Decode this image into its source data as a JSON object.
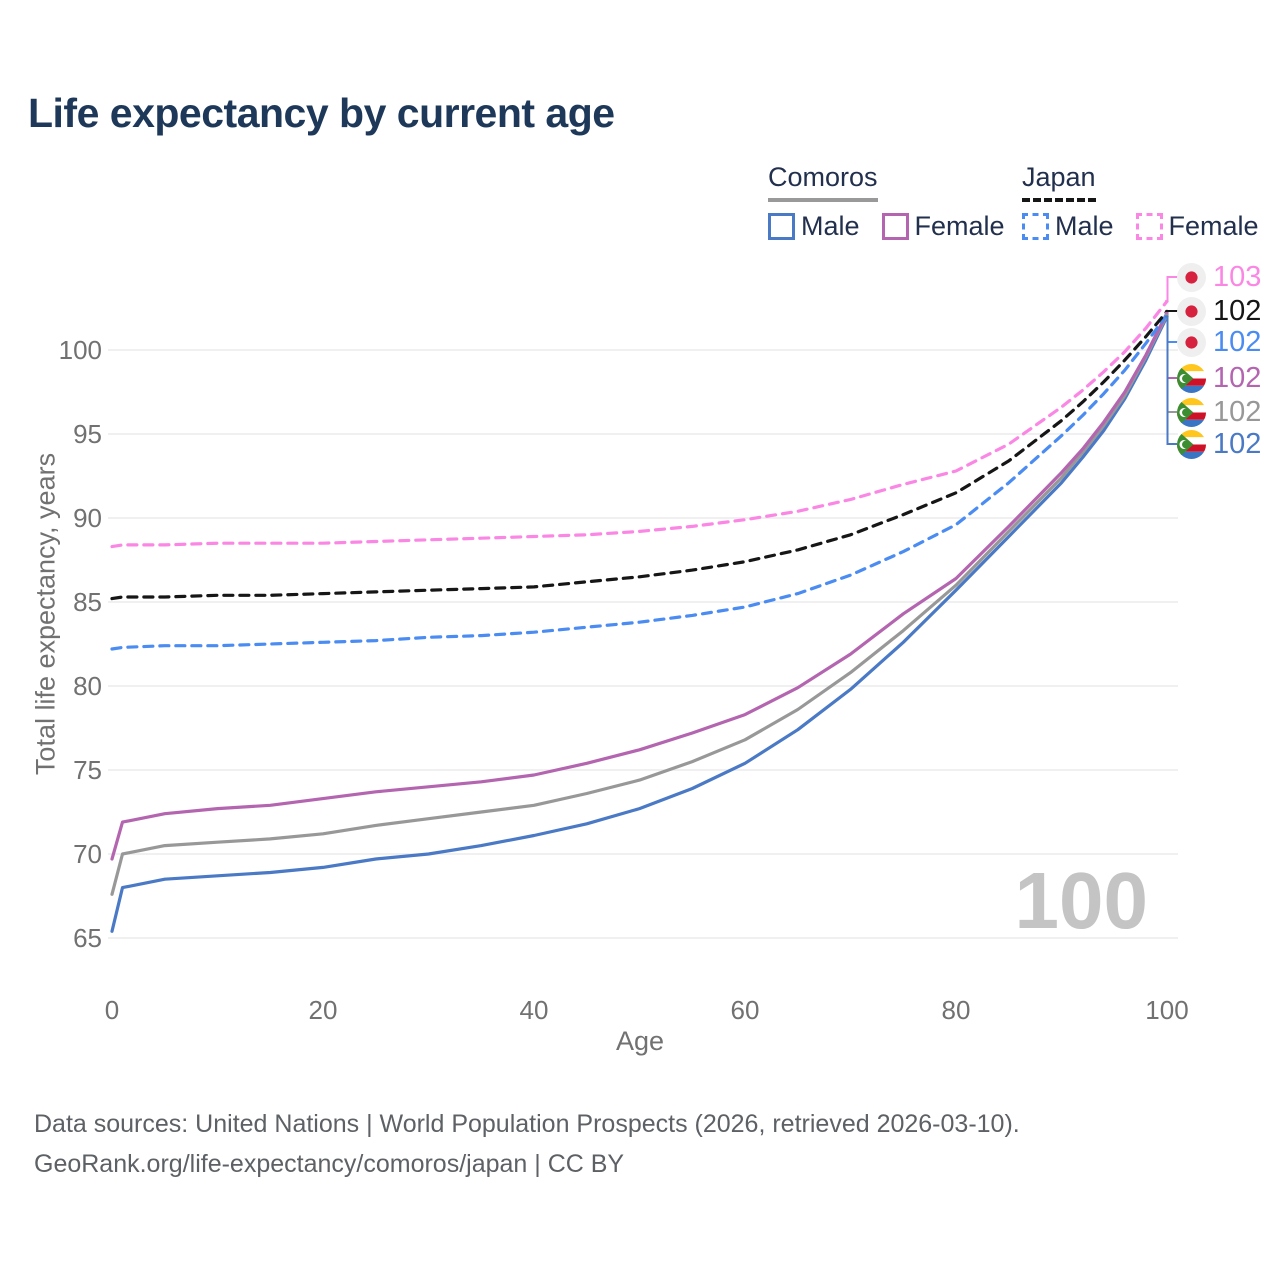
{
  "page": {
    "title": "Life expectancy by current age"
  },
  "legend": {
    "groups": [
      {
        "label": "Comoros",
        "line_style": "solid",
        "line_color": "#999999",
        "items": [
          {
            "label": "Male",
            "color": "#4a79c5",
            "dashed": false
          },
          {
            "label": "Female",
            "color": "#b465b0",
            "dashed": false
          }
        ]
      },
      {
        "label": "Japan",
        "line_style": "dashed",
        "line_color": "#161616",
        "items": [
          {
            "label": "Male",
            "color": "#4b8cf2",
            "dashed": true
          },
          {
            "label": "Female",
            "color": "#fb87e4",
            "dashed": true
          }
        ]
      }
    ]
  },
  "colors": {
    "grid": "#ececec",
    "axis_text": "#717171",
    "title_text": "#1d3859",
    "legend_text": "#22304e",
    "footer_text": "#5d6165",
    "watermark": "#c4c4c4",
    "flag_japan_bg": "#efefef",
    "flag_japan_dot": "#d6213f",
    "flag_comoros_yellow": "#ffc61e",
    "flag_comoros_white": "#ffffff",
    "flag_comoros_red": "#ce1126",
    "flag_comoros_blue": "#3a75c4",
    "flag_comoros_green": "#3d8e33"
  },
  "chart_data": {
    "type": "line",
    "title": "Life expectancy by current age",
    "xlabel": "Age",
    "ylabel": "Total life expectancy, years",
    "xlim": [
      0,
      100
    ],
    "ylim": [
      65,
      100
    ],
    "xticks": [
      0,
      20,
      40,
      60,
      80,
      100
    ],
    "yticks": [
      65,
      70,
      75,
      80,
      85,
      90,
      95,
      100
    ],
    "grid": true,
    "watermark": "100",
    "x": [
      0,
      1,
      5,
      10,
      15,
      20,
      25,
      30,
      35,
      40,
      45,
      50,
      55,
      60,
      65,
      70,
      75,
      80,
      85,
      90,
      92,
      94,
      96,
      98,
      100
    ],
    "series": [
      {
        "id": "comoros_male",
        "country": "Comoros",
        "sex": "Male",
        "color": "#4a79c5",
        "dashed": false,
        "end_label": "102",
        "values": [
          65.4,
          68.0,
          68.5,
          68.7,
          68.9,
          69.2,
          69.7,
          70.0,
          70.5,
          71.1,
          71.8,
          72.7,
          73.9,
          75.4,
          77.4,
          79.8,
          82.6,
          85.7,
          88.9,
          92.1,
          93.6,
          95.2,
          97.1,
          99.4,
          102.0
        ]
      },
      {
        "id": "comoros_total",
        "country": "Comoros",
        "sex": "Both sexes",
        "color": "#989898",
        "dashed": false,
        "end_label": "102",
        "values": [
          67.6,
          70.0,
          70.5,
          70.7,
          70.9,
          71.2,
          71.7,
          72.1,
          72.5,
          72.9,
          73.6,
          74.4,
          75.5,
          76.8,
          78.6,
          80.8,
          83.3,
          86.0,
          89.2,
          92.4,
          93.9,
          95.5,
          97.3,
          99.6,
          102.1
        ]
      },
      {
        "id": "comoros_female",
        "country": "Comoros",
        "sex": "Female",
        "color": "#b465b0",
        "dashed": false,
        "end_label": "102",
        "values": [
          69.7,
          71.9,
          72.4,
          72.7,
          72.9,
          73.3,
          73.7,
          74.0,
          74.3,
          74.7,
          75.4,
          76.2,
          77.2,
          78.3,
          79.9,
          81.9,
          84.3,
          86.4,
          89.5,
          92.7,
          94.1,
          95.7,
          97.5,
          99.7,
          102.2
        ]
      },
      {
        "id": "japan_male",
        "country": "Japan",
        "sex": "Male",
        "color": "#4b8cf2",
        "dashed": true,
        "end_label": "102",
        "values": [
          82.2,
          82.3,
          82.4,
          82.4,
          82.5,
          82.6,
          82.7,
          82.9,
          83.0,
          83.2,
          83.5,
          83.8,
          84.2,
          84.7,
          85.5,
          86.6,
          88.0,
          89.6,
          92.1,
          94.9,
          96.1,
          97.4,
          98.8,
          100.4,
          102.1
        ]
      },
      {
        "id": "japan_total",
        "country": "Japan",
        "sex": "Both sexes",
        "color": "#161616",
        "dashed": true,
        "end_label": "102",
        "values": [
          85.2,
          85.3,
          85.3,
          85.4,
          85.4,
          85.5,
          85.6,
          85.7,
          85.8,
          85.9,
          86.2,
          86.5,
          86.9,
          87.4,
          88.1,
          89.0,
          90.2,
          91.5,
          93.4,
          95.8,
          96.9,
          98.1,
          99.4,
          100.8,
          102.3
        ]
      },
      {
        "id": "japan_female",
        "country": "Japan",
        "sex": "Female",
        "color": "#fb87e4",
        "dashed": true,
        "end_label": "103",
        "values": [
          88.3,
          88.4,
          88.4,
          88.5,
          88.5,
          88.5,
          88.6,
          88.7,
          88.8,
          88.9,
          89.0,
          89.2,
          89.5,
          89.9,
          90.4,
          91.1,
          92.0,
          92.8,
          94.4,
          96.6,
          97.6,
          98.7,
          99.9,
          101.3,
          102.9
        ]
      }
    ],
    "end_label_order": [
      "japan_female",
      "japan_total",
      "japan_male",
      "comoros_female",
      "comoros_total",
      "comoros_male"
    ],
    "legend_position": "top-right"
  },
  "footer": {
    "line1": "Data sources: United Nations | World Population Prospects (2026, retrieved 2026-03-10).",
    "line2": "GeoRank.org/life-expectancy/comoros/japan | CC BY"
  }
}
